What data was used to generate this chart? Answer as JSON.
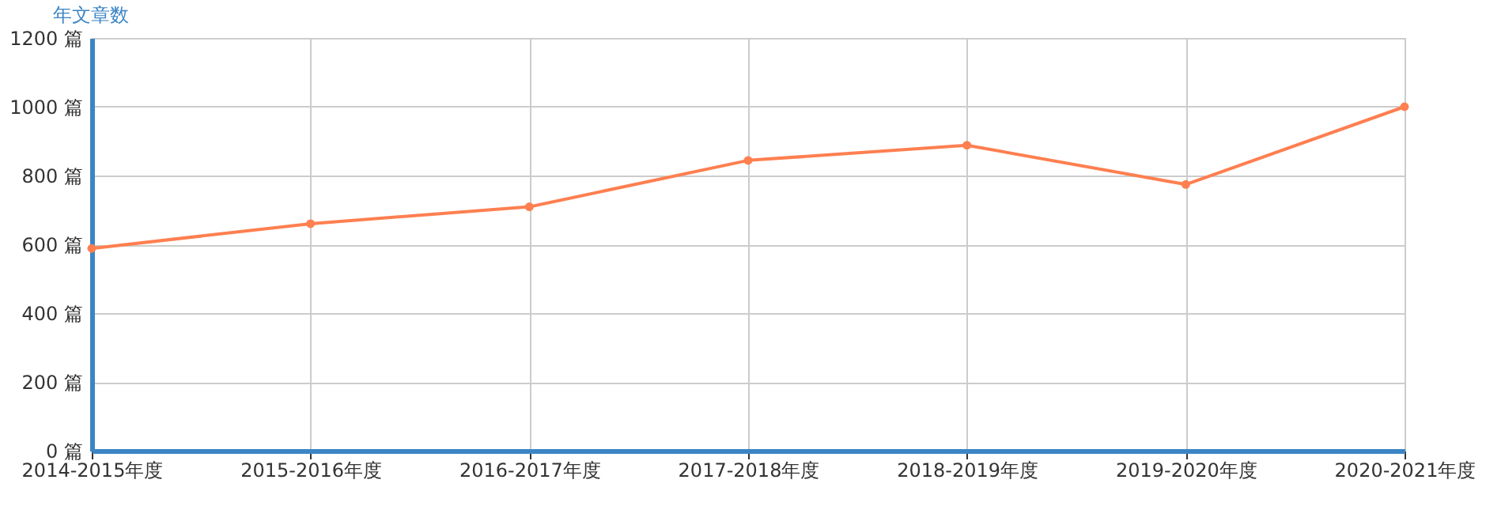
{
  "chart_data": {
    "type": "line",
    "ylabel": "年文章数",
    "categories": [
      "2014-2015年度",
      "2015-2016年度",
      "2016-2017年度",
      "2017-2018年度",
      "2018-2019年度",
      "2019-2020年度",
      "2020-2021年度"
    ],
    "series": [
      {
        "color": "#ff7f50",
        "values": [
          588,
          660,
          709,
          844,
          888,
          774,
          1000
        ]
      }
    ],
    "ylim": [
      0,
      1200
    ],
    "yticks": [
      {
        "value": 0,
        "label": "0 篇"
      },
      {
        "value": 200,
        "label": "200 篇"
      },
      {
        "value": 400,
        "label": "400 篇"
      },
      {
        "value": 600,
        "label": "600 篇"
      },
      {
        "value": 800,
        "label": "800 篇"
      },
      {
        "value": 1000,
        "label": "1000 篇"
      },
      {
        "value": 1200,
        "label": "1200 篇"
      }
    ],
    "grid": true,
    "marker": "circle",
    "line_style": "solid"
  }
}
